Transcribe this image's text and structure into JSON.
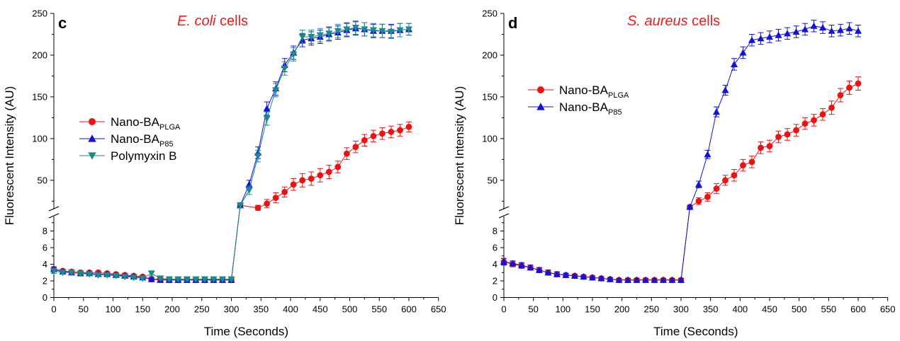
{
  "colors": {
    "plga": "#ee1111",
    "p85": "#1111dd",
    "polymyxin": "#1a8a8a",
    "title": "#ee1c1c"
  },
  "chart_data": [
    {
      "type": "line",
      "panel": "c",
      "title_italic": "E. coli",
      "title_rest": " cells",
      "xlabel": "Time (Seconds)",
      "ylabel": "Fluorescent Intensity (AU)",
      "xlim": [
        0,
        650
      ],
      "xticks": [
        "0",
        "50",
        "100",
        "150",
        "200",
        "250",
        "300",
        "350",
        "400",
        "450",
        "500",
        "550",
        "600",
        "650"
      ],
      "y_broken_axis": true,
      "ylim_lower": [
        0,
        10
      ],
      "yticks_lower": [
        "0",
        "2",
        "4",
        "6",
        "8"
      ],
      "ylim_upper": [
        10,
        250
      ],
      "yticks_upper": [
        "50",
        "100",
        "150",
        "200",
        "250"
      ],
      "legend_position": "center-left",
      "series": [
        {
          "name": "Nano-BA",
          "sub": "PLGA",
          "marker": "circle",
          "color_key": "plga",
          "x": [
            0,
            15,
            30,
            45,
            60,
            75,
            90,
            105,
            120,
            135,
            150,
            165,
            180,
            195,
            210,
            225,
            240,
            255,
            270,
            285,
            300,
            315,
            345,
            360,
            375,
            390,
            405,
            420,
            435,
            450,
            465,
            480,
            495,
            510,
            525,
            540,
            555,
            570,
            585,
            600
          ],
          "y": [
            3.4,
            3.2,
            3.1,
            3.0,
            3.0,
            3.0,
            2.9,
            2.8,
            2.7,
            2.6,
            2.5,
            2.2,
            2.2,
            2.1,
            2.1,
            2.1,
            2.1,
            2.1,
            2.1,
            2.1,
            2.1,
            20,
            17,
            22,
            29,
            36,
            45,
            50,
            52,
            56,
            60,
            66,
            82,
            90,
            98,
            103,
            106,
            108,
            110,
            114
          ],
          "err": [
            0.3,
            0.2,
            0.2,
            0.2,
            0.2,
            0.2,
            0.2,
            0.2,
            0.2,
            0.2,
            0.2,
            0.2,
            0.2,
            0.2,
            0.2,
            0.2,
            0.2,
            0.2,
            0.2,
            0.2,
            0.2,
            2,
            3,
            5,
            6,
            6,
            7,
            8,
            8,
            8,
            8,
            7,
            7,
            7,
            7,
            7,
            7,
            7,
            7,
            6
          ]
        },
        {
          "name": "Nano-BA",
          "sub": "P85",
          "marker": "triangle-up",
          "color_key": "p85",
          "x": [
            0,
            15,
            30,
            45,
            60,
            75,
            90,
            105,
            120,
            135,
            150,
            165,
            180,
            195,
            210,
            225,
            240,
            255,
            270,
            285,
            300,
            315,
            330,
            345,
            360,
            375,
            390,
            405,
            420,
            435,
            450,
            465,
            480,
            495,
            510,
            525,
            540,
            555,
            570,
            585,
            600
          ],
          "y": [
            3.4,
            3.1,
            3.0,
            2.9,
            2.9,
            2.8,
            2.8,
            2.7,
            2.6,
            2.5,
            2.4,
            2.2,
            2.1,
            2.1,
            2.1,
            2.1,
            2.1,
            2.1,
            2.1,
            2.1,
            2.1,
            20,
            45,
            83,
            136,
            160,
            188,
            203,
            218,
            220,
            222,
            225,
            227,
            230,
            232,
            231,
            229,
            229,
            229,
            230,
            231
          ],
          "err": [
            0.3,
            0.2,
            0.2,
            0.2,
            0.2,
            0.2,
            0.2,
            0.2,
            0.2,
            0.2,
            0.2,
            0.2,
            0.2,
            0.2,
            0.2,
            0.2,
            0.2,
            0.2,
            0.2,
            0.2,
            0.2,
            3,
            5,
            7,
            8,
            8,
            8,
            8,
            8,
            8,
            8,
            8,
            8,
            8,
            8,
            8,
            8,
            8,
            8,
            8,
            7
          ]
        },
        {
          "name": "Polymyxin B",
          "sub": "",
          "marker": "triangle-down",
          "color_key": "polymyxin",
          "x": [
            0,
            15,
            30,
            45,
            60,
            75,
            90,
            105,
            120,
            135,
            150,
            165,
            180,
            195,
            210,
            225,
            240,
            255,
            270,
            285,
            300,
            315,
            330,
            345,
            360,
            375,
            390,
            405,
            420,
            435,
            450,
            465,
            480,
            495,
            510,
            525,
            540,
            555,
            570,
            585,
            600
          ],
          "y": [
            3.2,
            3.0,
            3.0,
            2.9,
            2.8,
            2.7,
            2.7,
            2.6,
            2.5,
            2.4,
            2.3,
            2.9,
            2.3,
            2.2,
            2.2,
            2.2,
            2.2,
            2.2,
            2.2,
            2.2,
            2.2,
            20,
            38,
            79,
            124,
            158,
            184,
            201,
            222,
            222,
            224,
            226,
            229,
            231,
            233,
            231,
            230,
            229,
            228,
            230,
            231
          ],
          "err": [
            0.3,
            0.2,
            0.2,
            0.2,
            0.2,
            0.2,
            0.2,
            0.2,
            0.2,
            0.2,
            0.2,
            0.3,
            0.2,
            0.2,
            0.2,
            0.2,
            0.2,
            0.2,
            0.2,
            0.2,
            0.2,
            3,
            5,
            7,
            8,
            8,
            8,
            8,
            8,
            8,
            8,
            8,
            8,
            8,
            8,
            8,
            8,
            8,
            8,
            8,
            7
          ]
        }
      ]
    },
    {
      "type": "line",
      "panel": "d",
      "title_italic": "S. aureus",
      "title_rest": " cells",
      "xlabel": "Time (Seconds)",
      "ylabel": "Fluorescent Intensity (AU)",
      "xlim": [
        0,
        650
      ],
      "xticks": [
        "0",
        "50",
        "100",
        "150",
        "200",
        "250",
        "300",
        "350",
        "400",
        "450",
        "500",
        "550",
        "600",
        "650"
      ],
      "y_broken_axis": true,
      "ylim_lower": [
        0,
        10
      ],
      "yticks_lower": [
        "0",
        "2",
        "4",
        "6",
        "8"
      ],
      "ylim_upper": [
        10,
        250
      ],
      "yticks_upper": [
        "50",
        "100",
        "150",
        "200",
        "250"
      ],
      "legend_position": "upper-left",
      "series": [
        {
          "name": "Nano-BA",
          "sub": "PLGA",
          "marker": "circle",
          "color_key": "plga",
          "x": [
            0,
            15,
            30,
            45,
            60,
            75,
            90,
            105,
            120,
            135,
            150,
            165,
            180,
            195,
            210,
            225,
            240,
            255,
            270,
            285,
            300,
            315,
            330,
            345,
            360,
            375,
            390,
            405,
            420,
            435,
            450,
            465,
            480,
            495,
            510,
            525,
            540,
            555,
            570,
            585,
            600
          ],
          "y": [
            4.3,
            4.0,
            3.8,
            3.6,
            3.3,
            3.0,
            2.8,
            2.7,
            2.6,
            2.5,
            2.4,
            2.3,
            2.2,
            2.1,
            2.1,
            2.1,
            2.1,
            2.1,
            2.1,
            2.1,
            2.1,
            18,
            25,
            30,
            40,
            50,
            56,
            68,
            72,
            89,
            91,
            102,
            105,
            110,
            118,
            122,
            129,
            137,
            152,
            161,
            166
          ],
          "err": [
            0.4,
            0.3,
            0.3,
            0.3,
            0.3,
            0.3,
            0.3,
            0.2,
            0.2,
            0.2,
            0.2,
            0.2,
            0.2,
            0.2,
            0.2,
            0.2,
            0.2,
            0.2,
            0.2,
            0.2,
            0.2,
            2,
            4,
            5,
            6,
            6,
            7,
            7,
            7,
            7,
            7,
            7,
            7,
            7,
            7,
            7,
            7,
            8,
            8,
            8,
            8
          ]
        },
        {
          "name": "Nano-BA",
          "sub": "P85",
          "marker": "triangle-up",
          "color_key": "p85",
          "x": [
            0,
            15,
            30,
            45,
            60,
            75,
            90,
            105,
            120,
            135,
            150,
            165,
            180,
            195,
            210,
            225,
            240,
            255,
            270,
            285,
            300,
            315,
            330,
            345,
            360,
            375,
            390,
            405,
            420,
            435,
            450,
            465,
            480,
            495,
            510,
            525,
            540,
            555,
            570,
            585,
            600
          ],
          "y": [
            4.3,
            4.1,
            3.9,
            3.6,
            3.3,
            3.0,
            2.8,
            2.7,
            2.6,
            2.5,
            2.4,
            2.3,
            2.2,
            2.1,
            2.1,
            2.1,
            2.1,
            2.1,
            2.1,
            2.1,
            2.1,
            18,
            45,
            81,
            132,
            158,
            189,
            203,
            218,
            220,
            222,
            224,
            226,
            228,
            231,
            235,
            233,
            229,
            230,
            232,
            229
          ],
          "err": [
            0.4,
            0.3,
            0.3,
            0.3,
            0.3,
            0.3,
            0.3,
            0.2,
            0.2,
            0.2,
            0.2,
            0.2,
            0.2,
            0.2,
            0.2,
            0.2,
            0.2,
            0.2,
            0.2,
            0.2,
            0.2,
            2,
            4,
            5,
            6,
            6,
            7,
            7,
            7,
            7,
            7,
            7,
            7,
            7,
            7,
            7,
            7,
            7,
            7,
            7,
            7
          ]
        }
      ]
    }
  ]
}
